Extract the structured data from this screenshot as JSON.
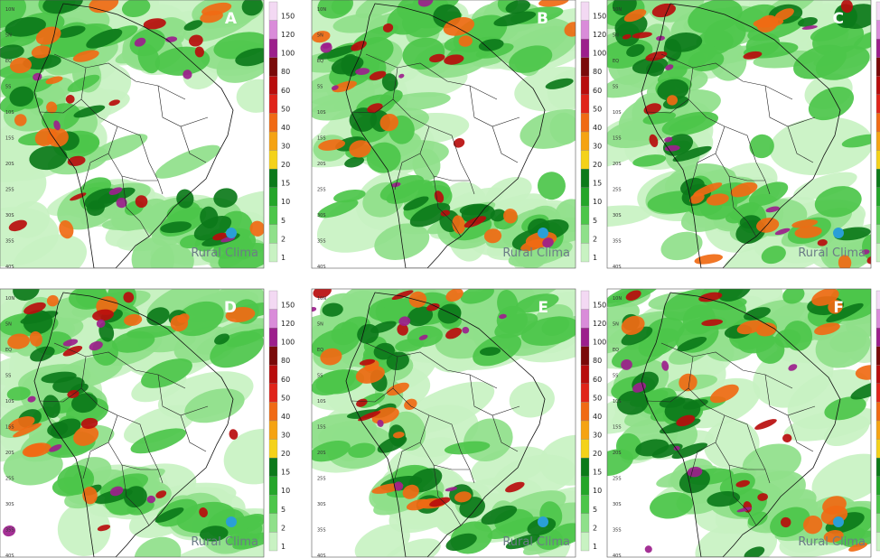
{
  "panels": [
    {
      "letter": "A"
    },
    {
      "letter": "B"
    },
    {
      "letter": "C"
    },
    {
      "letter": "D"
    },
    {
      "letter": "E"
    },
    {
      "letter": "F"
    }
  ],
  "lat_labels": [
    "10N",
    "5N",
    "EQ",
    "5S",
    "10S",
    "15S",
    "20S",
    "25S",
    "30S",
    "35S",
    "40S"
  ],
  "colorbar": [
    {
      "label": 150,
      "color": "#f3d9f3"
    },
    {
      "label": 120,
      "color": "#d98cd9"
    },
    {
      "label": 100,
      "color": "#9c1f8c"
    },
    {
      "label": 80,
      "color": "#7a0a0a"
    },
    {
      "label": 60,
      "color": "#b80d0d"
    },
    {
      "label": 50,
      "color": "#e0241a"
    },
    {
      "label": 40,
      "color": "#f06a14"
    },
    {
      "label": 30,
      "color": "#f5a312"
    },
    {
      "label": 20,
      "color": "#f4d21a"
    },
    {
      "label": 15,
      "color": "#0c7a1a"
    },
    {
      "label": 10,
      "color": "#24a62a"
    },
    {
      "label": 5,
      "color": "#4cc64a"
    },
    {
      "label": 2,
      "color": "#8fe08a"
    },
    {
      "label": 1,
      "color": "#c8f2c2"
    }
  ],
  "watermark": "Rural Clima"
}
